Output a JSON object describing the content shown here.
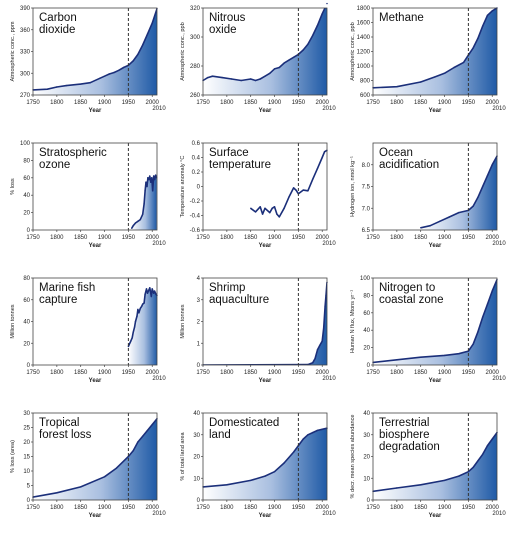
{
  "style": {
    "line_color": "#1b2f7a",
    "fill_light": "#ffffff",
    "fill_dark": "#1f5aa6",
    "marker_color": "#333333"
  },
  "charts": [
    {
      "id": "co2",
      "type": "area",
      "title": [
        "Carbon",
        "dioxide"
      ],
      "ylabel": "Atmospheric conc., ppm",
      "xlabel": "Year",
      "ylim": [
        270,
        390
      ],
      "yticks": [
        "270",
        "300",
        "330",
        "360",
        "390"
      ],
      "xlim": [
        1750,
        2010
      ],
      "xticks": [
        "1750",
        "1800",
        "1850",
        "1900",
        "1950",
        "2000"
      ],
      "xend_label": "2010",
      "marker_year": 1950,
      "x": [
        1750,
        1780,
        1800,
        1820,
        1850,
        1870,
        1890,
        1900,
        1910,
        1920,
        1930,
        1940,
        1950,
        1960,
        1970,
        1980,
        1990,
        2000,
        2010
      ],
      "y": [
        277,
        278,
        281,
        283,
        285,
        287,
        293,
        296,
        299,
        301,
        304,
        308,
        311,
        317,
        326,
        339,
        354,
        369,
        389
      ]
    },
    {
      "id": "n2o",
      "type": "area",
      "title": [
        "Nitrous",
        "oxide"
      ],
      "ylabel": "Atmospheric conc., ppb",
      "xlabel": "Year",
      "ylim": [
        260,
        320
      ],
      "yticks": [
        "260",
        "280",
        "300",
        "320"
      ],
      "xlim": [
        1750,
        2010
      ],
      "xticks": [
        "1750",
        "1800",
        "1850",
        "1900",
        "1950",
        "2000"
      ],
      "xend_label": "2010",
      "marker_year": 1950,
      "x": [
        1750,
        1760,
        1770,
        1790,
        1810,
        1830,
        1850,
        1860,
        1870,
        1880,
        1890,
        1900,
        1910,
        1920,
        1930,
        1940,
        1950,
        1960,
        1970,
        1980,
        1990,
        2000,
        2010
      ],
      "y": [
        270,
        272,
        273,
        272,
        271,
        270,
        271,
        270,
        271,
        273,
        275,
        278,
        279,
        282,
        284,
        286,
        288,
        291,
        295,
        301,
        308,
        316,
        323
      ]
    },
    {
      "id": "ch4",
      "type": "area",
      "title": [
        "Methane"
      ],
      "ylabel": "Atmospheric conc., ppb",
      "xlabel": "Year",
      "ylim": [
        600,
        1800
      ],
      "yticks": [
        "600",
        "800",
        "1000",
        "1200",
        "1400",
        "1600",
        "1800"
      ],
      "xlim": [
        1750,
        2010
      ],
      "xticks": [
        "1750",
        "1800",
        "1850",
        "1900",
        "1950",
        "2000"
      ],
      "xend_label": "2010",
      "marker_year": 1950,
      "x": [
        1750,
        1800,
        1850,
        1880,
        1900,
        1920,
        1940,
        1950,
        1960,
        1970,
        1980,
        1990,
        2000,
        2010
      ],
      "y": [
        700,
        715,
        780,
        850,
        900,
        980,
        1050,
        1150,
        1250,
        1380,
        1550,
        1700,
        1760,
        1800
      ]
    },
    {
      "id": "ozone",
      "type": "area",
      "title": [
        "Stratospheric",
        "ozone"
      ],
      "ylabel": "% loss",
      "xlabel": "Year",
      "ylim": [
        0,
        100
      ],
      "yticks": [
        "0",
        "20",
        "40",
        "60",
        "80",
        "100"
      ],
      "xlim": [
        1750,
        2010
      ],
      "xticks": [
        "1750",
        "1800",
        "1850",
        "1900",
        "1950",
        "2000"
      ],
      "xend_label": "2010",
      "marker_year": 1950,
      "x": [
        1957,
        1960,
        1965,
        1970,
        1975,
        1980,
        1983,
        1985,
        1987,
        1989,
        1991,
        1993,
        1995,
        1997,
        1999,
        2001,
        2003,
        2005,
        2007,
        2009
      ],
      "y": [
        2,
        5,
        8,
        10,
        12,
        18,
        30,
        45,
        55,
        50,
        60,
        58,
        62,
        55,
        60,
        45,
        62,
        58,
        63,
        60
      ]
    },
    {
      "id": "temp",
      "type": "line",
      "title": [
        "Surface",
        "temperature"
      ],
      "ylabel": "Temperature anomaly °C",
      "xlabel": "Year",
      "ylim": [
        -0.6,
        0.6
      ],
      "yticks": [
        "-0.6",
        "-0.4",
        "-0.2",
        "0",
        "0.2",
        "0.4",
        "0.6"
      ],
      "xlim": [
        1750,
        2010
      ],
      "xticks": [
        "1750",
        "1800",
        "1850",
        "1900",
        "1950",
        "2000"
      ],
      "xend_label": "2010",
      "marker_year": 1950,
      "x": [
        1850,
        1860,
        1870,
        1875,
        1880,
        1890,
        1895,
        1900,
        1905,
        1910,
        1920,
        1930,
        1940,
        1945,
        1950,
        1960,
        1970,
        1980,
        1990,
        2000,
        2005,
        2010
      ],
      "y": [
        -0.3,
        -0.35,
        -0.28,
        -0.38,
        -0.3,
        -0.36,
        -0.3,
        -0.28,
        -0.38,
        -0.42,
        -0.3,
        -0.15,
        -0.02,
        -0.05,
        -0.1,
        -0.05,
        -0.06,
        0.1,
        0.25,
        0.4,
        0.48,
        0.5
      ]
    },
    {
      "id": "ocean",
      "type": "area",
      "title": [
        "Ocean",
        "acidification"
      ],
      "ylabel": "Hydrogen ion, nmol kg⁻¹",
      "xlabel": "Year",
      "ylim": [
        6.5,
        8.5
      ],
      "yticks": [
        "6.5",
        "7.0",
        "7.5",
        "8.0"
      ],
      "xlim": [
        1750,
        2010
      ],
      "xticks": [
        "1750",
        "1800",
        "1850",
        "1900",
        "1950",
        "2000"
      ],
      "xend_label": "2010",
      "marker_year": 1950,
      "x": [
        1850,
        1870,
        1890,
        1910,
        1930,
        1950,
        1960,
        1970,
        1980,
        1990,
        2000,
        2010
      ],
      "y": [
        6.55,
        6.6,
        6.7,
        6.8,
        6.9,
        6.95,
        7.05,
        7.25,
        7.5,
        7.75,
        8.0,
        8.2
      ]
    },
    {
      "id": "fish",
      "type": "area",
      "title": [
        "Marine fish",
        "capture"
      ],
      "ylabel": "Million tonnes",
      "xlabel": "Year",
      "ylim": [
        0,
        80
      ],
      "yticks": [
        "0",
        "20",
        "40",
        "60",
        "80"
      ],
      "xlim": [
        1750,
        2010
      ],
      "xticks": [
        "1750",
        "1800",
        "1850",
        "1900",
        "1950",
        "2000"
      ],
      "xend_label": "2010",
      "marker_year": 1950,
      "x": [
        1950,
        1952,
        1955,
        1958,
        1960,
        1963,
        1965,
        1968,
        1970,
        1972,
        1975,
        1978,
        1980,
        1983,
        1985,
        1988,
        1990,
        1992,
        1995,
        1998,
        2000,
        2003,
        2005,
        2008,
        2010
      ],
      "y": [
        17,
        19,
        22,
        25,
        30,
        35,
        40,
        45,
        51,
        48,
        52,
        54,
        56,
        57,
        65,
        70,
        66,
        68,
        71,
        63,
        70,
        66,
        68,
        65,
        64
      ]
    },
    {
      "id": "shrimp",
      "type": "area",
      "title": [
        "Shrimp",
        "aquaculture"
      ],
      "ylabel": "Million tonnes",
      "xlabel": "Year",
      "ylim": [
        0,
        4
      ],
      "yticks": [
        "0",
        "1",
        "2",
        "3",
        "4"
      ],
      "xlim": [
        1750,
        2010
      ],
      "xticks": [
        "1750",
        "1800",
        "1850",
        "1900",
        "1950",
        "2000"
      ],
      "xend_label": "2010",
      "marker_year": 1950,
      "x": [
        1750,
        1970,
        1980,
        1985,
        1990,
        1995,
        2000,
        2003,
        2006,
        2008,
        2010
      ],
      "y": [
        0,
        0.02,
        0.1,
        0.3,
        0.7,
        0.9,
        1.1,
        1.7,
        2.7,
        3.2,
        3.8
      ]
    },
    {
      "id": "nitrogen",
      "type": "area",
      "title": [
        "Nitrogen to",
        "coastal zone"
      ],
      "ylabel": "Human N flux, Mtons yr⁻¹",
      "xlabel": "Year",
      "ylim": [
        0,
        100
      ],
      "yticks": [
        "0",
        "20",
        "40",
        "60",
        "80",
        "100"
      ],
      "xlim": [
        1750,
        2010
      ],
      "xticks": [
        "1750",
        "1800",
        "1850",
        "1900",
        "1950",
        "2000"
      ],
      "xend_label": "2010",
      "marker_year": 1950,
      "x": [
        1750,
        1800,
        1850,
        1900,
        1930,
        1950,
        1960,
        1970,
        1980,
        1990,
        2000,
        2010
      ],
      "y": [
        3,
        6,
        9,
        11,
        13,
        16,
        24,
        38,
        55,
        70,
        85,
        98
      ]
    },
    {
      "id": "forest",
      "type": "area",
      "title": [
        "Tropical",
        "forest loss"
      ],
      "ylabel": "% loss (area)",
      "xlabel": "Year",
      "ylim": [
        0,
        30
      ],
      "yticks": [
        "0",
        "5",
        "10",
        "15",
        "20",
        "25",
        "30"
      ],
      "xlim": [
        1750,
        2010
      ],
      "xticks": [
        "1750",
        "1800",
        "1850",
        "1900",
        "1950",
        "2000"
      ],
      "xend_label": "2010",
      "marker_year": 1950,
      "x": [
        1750,
        1800,
        1850,
        1900,
        1925,
        1950,
        1960,
        1970,
        1980,
        1990,
        2000,
        2010
      ],
      "y": [
        1,
        2.5,
        4.5,
        8,
        11,
        15,
        17,
        20,
        22,
        24,
        26,
        28
      ]
    },
    {
      "id": "land",
      "type": "area",
      "title": [
        "Domesticated",
        "land"
      ],
      "ylabel": "% of total land area",
      "xlabel": "Year",
      "ylim": [
        0,
        40
      ],
      "yticks": [
        "0",
        "10",
        "20",
        "30",
        "40"
      ],
      "xlim": [
        1750,
        2010
      ],
      "xticks": [
        "1750",
        "1800",
        "1850",
        "1900",
        "1950",
        "2000"
      ],
      "xend_label": "2010",
      "marker_year": 1950,
      "x": [
        1750,
        1800,
        1850,
        1880,
        1900,
        1920,
        1940,
        1950,
        1960,
        1970,
        1980,
        1990,
        2000,
        2010
      ],
      "y": [
        6,
        7,
        9,
        11,
        13,
        17,
        22,
        25,
        28,
        30,
        31,
        32,
        32.5,
        33
      ]
    },
    {
      "id": "biosphere",
      "type": "area",
      "title": [
        "Terrestrial",
        "biosphere",
        "degradation"
      ],
      "ylabel": "% decr. mean species abundance",
      "xlabel": "Year",
      "ylim": [
        0,
        40
      ],
      "yticks": [
        "0",
        "10",
        "20",
        "30",
        "40"
      ],
      "xlim": [
        1750,
        2010
      ],
      "xticks": [
        "1750",
        "1800",
        "1850",
        "1900",
        "1950",
        "2000"
      ],
      "xend_label": "2010",
      "marker_year": 1950,
      "x": [
        1750,
        1800,
        1850,
        1900,
        1930,
        1950,
        1960,
        1970,
        1980,
        1990,
        2000,
        2010
      ],
      "y": [
        4,
        5.5,
        7,
        9,
        11,
        13,
        15,
        18,
        21,
        25,
        28,
        31
      ]
    }
  ]
}
